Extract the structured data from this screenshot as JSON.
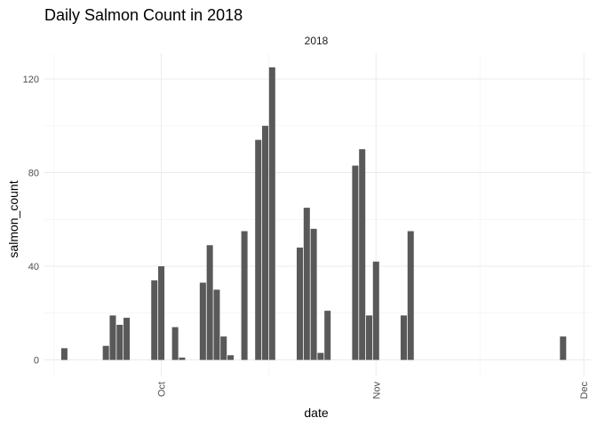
{
  "chart_data": {
    "type": "bar",
    "title": "Daily Salmon Count in 2018",
    "facet_label": "2018",
    "xlabel": "date",
    "ylabel": "salmon_count",
    "x_ticks": [
      {
        "date": "2018-10-01",
        "label": "Oct"
      },
      {
        "date": "2018-11-01",
        "label": "Nov"
      },
      {
        "date": "2018-12-01",
        "label": "Dec"
      }
    ],
    "y_ticks": [
      0,
      40,
      80,
      120
    ],
    "ylim": [
      -7,
      131
    ],
    "xlim": [
      "2018-09-14",
      "2018-12-02"
    ],
    "grid": true,
    "bar_color": "#595959",
    "points": [
      {
        "date": "2018-09-17",
        "value": 5
      },
      {
        "date": "2018-09-23",
        "value": 6
      },
      {
        "date": "2018-09-24",
        "value": 19
      },
      {
        "date": "2018-09-25",
        "value": 15
      },
      {
        "date": "2018-09-26",
        "value": 18
      },
      {
        "date": "2018-09-30",
        "value": 34
      },
      {
        "date": "2018-10-01",
        "value": 40
      },
      {
        "date": "2018-10-03",
        "value": 14
      },
      {
        "date": "2018-10-04",
        "value": 1
      },
      {
        "date": "2018-10-07",
        "value": 33
      },
      {
        "date": "2018-10-08",
        "value": 49
      },
      {
        "date": "2018-10-09",
        "value": 30
      },
      {
        "date": "2018-10-10",
        "value": 10
      },
      {
        "date": "2018-10-11",
        "value": 2
      },
      {
        "date": "2018-10-13",
        "value": 55
      },
      {
        "date": "2018-10-15",
        "value": 94
      },
      {
        "date": "2018-10-16",
        "value": 100
      },
      {
        "date": "2018-10-17",
        "value": 125
      },
      {
        "date": "2018-10-21",
        "value": 48
      },
      {
        "date": "2018-10-22",
        "value": 65
      },
      {
        "date": "2018-10-23",
        "value": 56
      },
      {
        "date": "2018-10-24",
        "value": 3
      },
      {
        "date": "2018-10-25",
        "value": 21
      },
      {
        "date": "2018-10-29",
        "value": 83
      },
      {
        "date": "2018-10-30",
        "value": 90
      },
      {
        "date": "2018-10-31",
        "value": 19
      },
      {
        "date": "2018-11-01",
        "value": 42
      },
      {
        "date": "2018-11-05",
        "value": 19
      },
      {
        "date": "2018-11-06",
        "value": 55
      },
      {
        "date": "2018-11-28",
        "value": 10
      }
    ]
  }
}
